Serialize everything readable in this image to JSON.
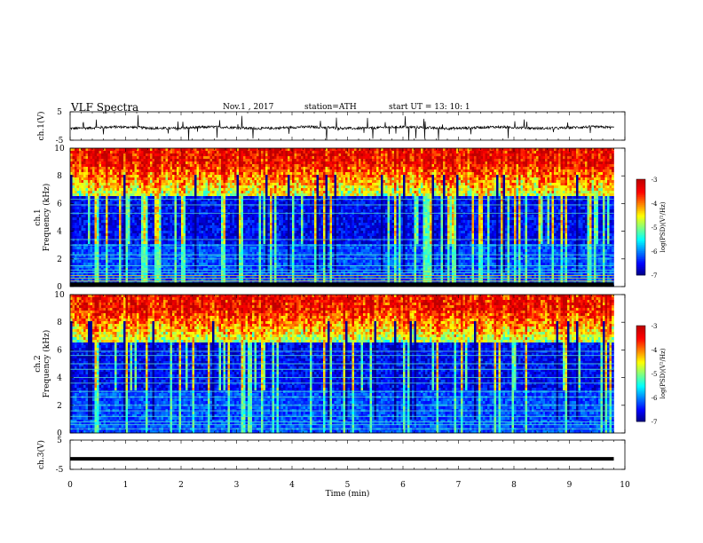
{
  "header": {
    "title": "VLF  Spectra",
    "date": "Nov.1  , 2017",
    "station": "station=ATH",
    "start": "start  UT  =    13: 10: 1"
  },
  "chart_data": [
    {
      "id": "ch1-waveform",
      "type": "line",
      "ylabel": "ch.1(V)",
      "ylim": [
        -5,
        5
      ],
      "yticks": [
        "5",
        "-5"
      ],
      "xlim": [
        0,
        10
      ],
      "baseline": -0.6
    },
    {
      "id": "ch1-spectrogram",
      "type": "heatmap",
      "ylabel": [
        "ch.1",
        "Frequency  (kHz)"
      ],
      "ylim": [
        0,
        10
      ],
      "yticks": [
        "0",
        "2",
        "4",
        "6",
        "8",
        "10"
      ],
      "xlim": [
        0,
        10
      ],
      "data_end_min": 9.8,
      "colorbar": {
        "label": "log(PSD)(V²/Hz)",
        "range": [
          -7,
          -3
        ],
        "ticks": [
          "-3",
          "-4",
          "-5",
          "-6",
          "-7"
        ]
      }
    },
    {
      "id": "ch2-spectrogram",
      "type": "heatmap",
      "ylabel": [
        "ch.2",
        "Frequency  (kHz)"
      ],
      "ylim": [
        0,
        10
      ],
      "yticks": [
        "0",
        "2",
        "4",
        "6",
        "8",
        "10"
      ],
      "xlim": [
        0,
        10
      ],
      "data_end_min": 9.8,
      "colorbar": {
        "label": "log(PSD)(V²/Hz)",
        "range": [
          -7,
          -3
        ],
        "ticks": [
          "-3",
          "-4",
          "-5",
          "-6",
          "-7"
        ]
      }
    },
    {
      "id": "ch3-waveform",
      "type": "line",
      "ylabel": "ch.3(V)",
      "ylim": [
        -5,
        5
      ],
      "yticks": [
        "5",
        "-5"
      ],
      "xlim": [
        0,
        10
      ],
      "baseline": -1.4,
      "xlabel": "Time  (min)",
      "xticks": [
        "0",
        "1",
        "2",
        "3",
        "4",
        "5",
        "6",
        "7",
        "8",
        "9",
        "10"
      ]
    }
  ]
}
